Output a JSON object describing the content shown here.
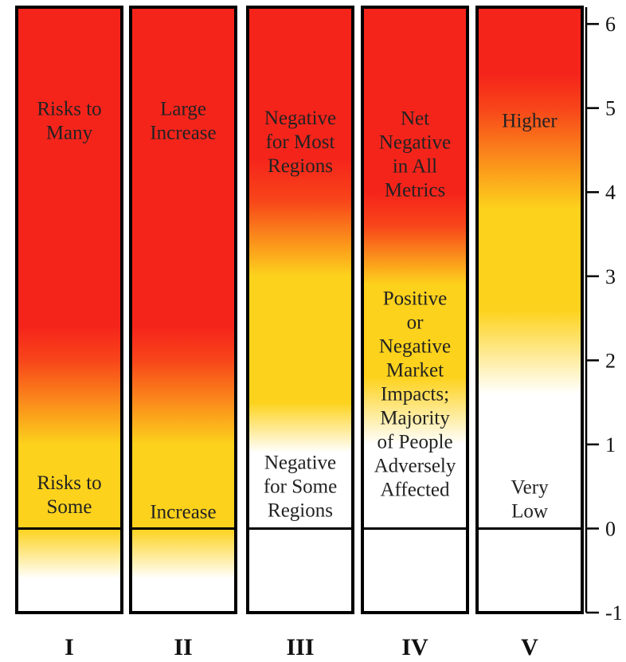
{
  "chart_data": {
    "type": "heatmap",
    "title": "",
    "ylim": [
      -1,
      6.2
    ],
    "y_ticks": [
      -1,
      0,
      1,
      2,
      3,
      4,
      5,
      6
    ],
    "y_tick_labels": [
      "-1",
      "0",
      "1",
      "2",
      "3",
      "4",
      "5",
      "6"
    ],
    "grid": false,
    "color_scale": {
      "low": "#ffffff",
      "mid": "#fdd21c",
      "high": "#f5241b"
    },
    "columns": [
      {
        "name": "I",
        "labels": [
          {
            "text": "Risks to Many",
            "lines": [
              "Risks to",
              "Many"
            ],
            "y": 4.85
          },
          {
            "text": "Risks to Some",
            "lines": [
              "Risks to",
              "Some"
            ],
            "y": 0.4
          }
        ],
        "gradient_stops": [
          [
            -1,
            "#ffffff"
          ],
          [
            -0.6,
            "#ffffff"
          ],
          [
            0,
            "#fdd21c"
          ],
          [
            1,
            "#fdd21c"
          ],
          [
            2,
            "#f8451a"
          ],
          [
            2.4,
            "#f5241b"
          ],
          [
            6.2,
            "#f5241b"
          ]
        ]
      },
      {
        "name": "II",
        "labels": [
          {
            "text": "Large Increase",
            "lines": [
              "Large",
              "Increase"
            ],
            "y": 4.85
          },
          {
            "text": "Increase",
            "lines": [
              "Increase"
            ],
            "y": 0.2
          }
        ],
        "gradient_stops": [
          [
            -1,
            "#ffffff"
          ],
          [
            -0.6,
            "#ffffff"
          ],
          [
            0,
            "#fdd21c"
          ],
          [
            1,
            "#fdd21c"
          ],
          [
            2,
            "#f8451a"
          ],
          [
            2.4,
            "#f5241b"
          ],
          [
            6.2,
            "#f5241b"
          ]
        ]
      },
      {
        "name": "III",
        "labels": [
          {
            "text": "Negative for Most Regions",
            "lines": [
              "Negative",
              "for Most",
              "Regions"
            ],
            "y": 4.6
          },
          {
            "text": "Negative for Some Regions",
            "lines": [
              "Negative",
              "for Some",
              "Regions"
            ],
            "y": 0.5
          }
        ],
        "gradient_stops": [
          [
            0,
            "#ffffff"
          ],
          [
            0.9,
            "#ffffff"
          ],
          [
            1.5,
            "#fdd21c"
          ],
          [
            3,
            "#fdd21c"
          ],
          [
            3.9,
            "#f8451a"
          ],
          [
            4.4,
            "#f5241b"
          ],
          [
            6.2,
            "#f5241b"
          ]
        ]
      },
      {
        "name": "IV",
        "labels": [
          {
            "text": "Net Negative in All Metrics",
            "lines": [
              "Net",
              "Negative",
              "in All",
              "Metrics"
            ],
            "y": 4.45
          },
          {
            "text": "Positive or Negative Market Impacts; Majority of People Adversely Affected",
            "lines": [
              "Positive",
              "or",
              "Negative",
              "Market",
              "Impacts;",
              "Majority",
              "of People",
              "Adversely",
              "Affected"
            ],
            "y": 1.6
          }
        ],
        "gradient_stops": [
          [
            0,
            "#ffffff"
          ],
          [
            1.0,
            "#ffffff"
          ],
          [
            1.8,
            "#fdd21c"
          ],
          [
            2.9,
            "#fdd21c"
          ],
          [
            3.6,
            "#f8451a"
          ],
          [
            4.0,
            "#f5241b"
          ],
          [
            6.2,
            "#f5241b"
          ]
        ]
      },
      {
        "name": "V",
        "labels": [
          {
            "text": "Higher",
            "lines": [
              "Higher"
            ],
            "y": 4.85
          },
          {
            "text": "Very Low",
            "lines": [
              "Very",
              "Low"
            ],
            "y": 0.35
          }
        ],
        "gradient_stops": [
          [
            0,
            "#ffffff"
          ],
          [
            1.6,
            "#ffffff"
          ],
          [
            2.6,
            "#fdd21c"
          ],
          [
            3.8,
            "#fdd21c"
          ],
          [
            5.0,
            "#f8451a"
          ],
          [
            5.4,
            "#f5241b"
          ],
          [
            6.2,
            "#f5241b"
          ]
        ]
      }
    ]
  }
}
